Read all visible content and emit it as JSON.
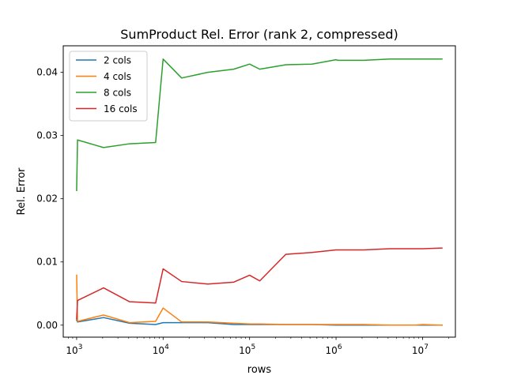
{
  "chart_data": {
    "type": "line",
    "title": "SumProduct Rel. Error (rank 2, compressed)",
    "xlabel": "rows",
    "ylabel": "Rel. Error",
    "xscale": "log",
    "xlim": [
      700,
      24000000
    ],
    "ylim": [
      -0.0019,
      0.0442
    ],
    "grid": false,
    "legend_position": "top-left",
    "x_ticks": [
      {
        "value": 1000,
        "base": "10",
        "exp": "3"
      },
      {
        "value": 10000,
        "base": "10",
        "exp": "4"
      },
      {
        "value": 100000,
        "base": "10",
        "exp": "5"
      },
      {
        "value": 1000000,
        "base": "10",
        "exp": "6"
      },
      {
        "value": 10000000,
        "base": "10",
        "exp": "7"
      }
    ],
    "y_ticks": [
      {
        "value": 0.0,
        "label": "0.00"
      },
      {
        "value": 0.01,
        "label": "0.01"
      },
      {
        "value": 0.02,
        "label": "0.02"
      },
      {
        "value": 0.03,
        "label": "0.03"
      },
      {
        "value": 0.04,
        "label": "0.04"
      }
    ],
    "series": [
      {
        "name": "2 cols",
        "color": "#1f77b4",
        "x": [
          1000,
          1024,
          2048,
          4096,
          8192,
          10000,
          16384,
          32768,
          65536,
          100000,
          131072,
          262144,
          524288,
          1000000,
          1048576,
          2097152,
          4194304,
          8388608,
          10000000,
          16777216
        ],
        "y": [
          0.0008,
          0.0005,
          0.0012,
          0.0003,
          0.0001,
          0.0004,
          0.0004,
          0.0004,
          0.0001,
          0.0001,
          0.0001,
          0.0001,
          0.0001,
          0.0,
          0.0,
          0.0,
          0.0,
          0.0,
          0.0,
          0.0
        ]
      },
      {
        "name": "4 cols",
        "color": "#ff7f0e",
        "x": [
          1000,
          1024,
          2048,
          4096,
          8192,
          10000,
          16384,
          32768,
          65536,
          100000,
          131072,
          262144,
          524288,
          1000000,
          1048576,
          2097152,
          4194304,
          8388608,
          10000000,
          16777216
        ],
        "y": [
          0.0079,
          0.0006,
          0.0016,
          0.0004,
          0.0006,
          0.0027,
          0.0005,
          0.0005,
          0.0003,
          0.0002,
          0.0002,
          0.0001,
          0.0001,
          0.0001,
          0.0001,
          0.0001,
          0.0,
          0.0,
          0.0001,
          0.0
        ]
      },
      {
        "name": "8 cols",
        "color": "#2ca02c",
        "x": [
          1000,
          1024,
          2048,
          4096,
          8192,
          10000,
          16384,
          32768,
          65536,
          100000,
          131072,
          262144,
          524288,
          1000000,
          1048576,
          2097152,
          4194304,
          8388608,
          10000000,
          16777216
        ],
        "y": [
          0.0213,
          0.0293,
          0.0281,
          0.0287,
          0.0289,
          0.0421,
          0.0391,
          0.04,
          0.0405,
          0.0413,
          0.0405,
          0.0412,
          0.0413,
          0.042,
          0.0419,
          0.0419,
          0.0421,
          0.0421,
          0.0421,
          0.0421
        ]
      },
      {
        "name": "16 cols",
        "color": "#d62728",
        "x": [
          1000,
          1024,
          2048,
          4096,
          8192,
          10000,
          16384,
          32768,
          65536,
          100000,
          131072,
          262144,
          524288,
          1000000,
          1048576,
          2097152,
          4194304,
          8388608,
          10000000,
          16777216
        ],
        "y": [
          0.001,
          0.0039,
          0.0059,
          0.0037,
          0.0035,
          0.0089,
          0.0069,
          0.0065,
          0.0068,
          0.0079,
          0.007,
          0.0112,
          0.0115,
          0.0119,
          0.0119,
          0.0119,
          0.0121,
          0.0121,
          0.0121,
          0.0122
        ]
      }
    ]
  }
}
